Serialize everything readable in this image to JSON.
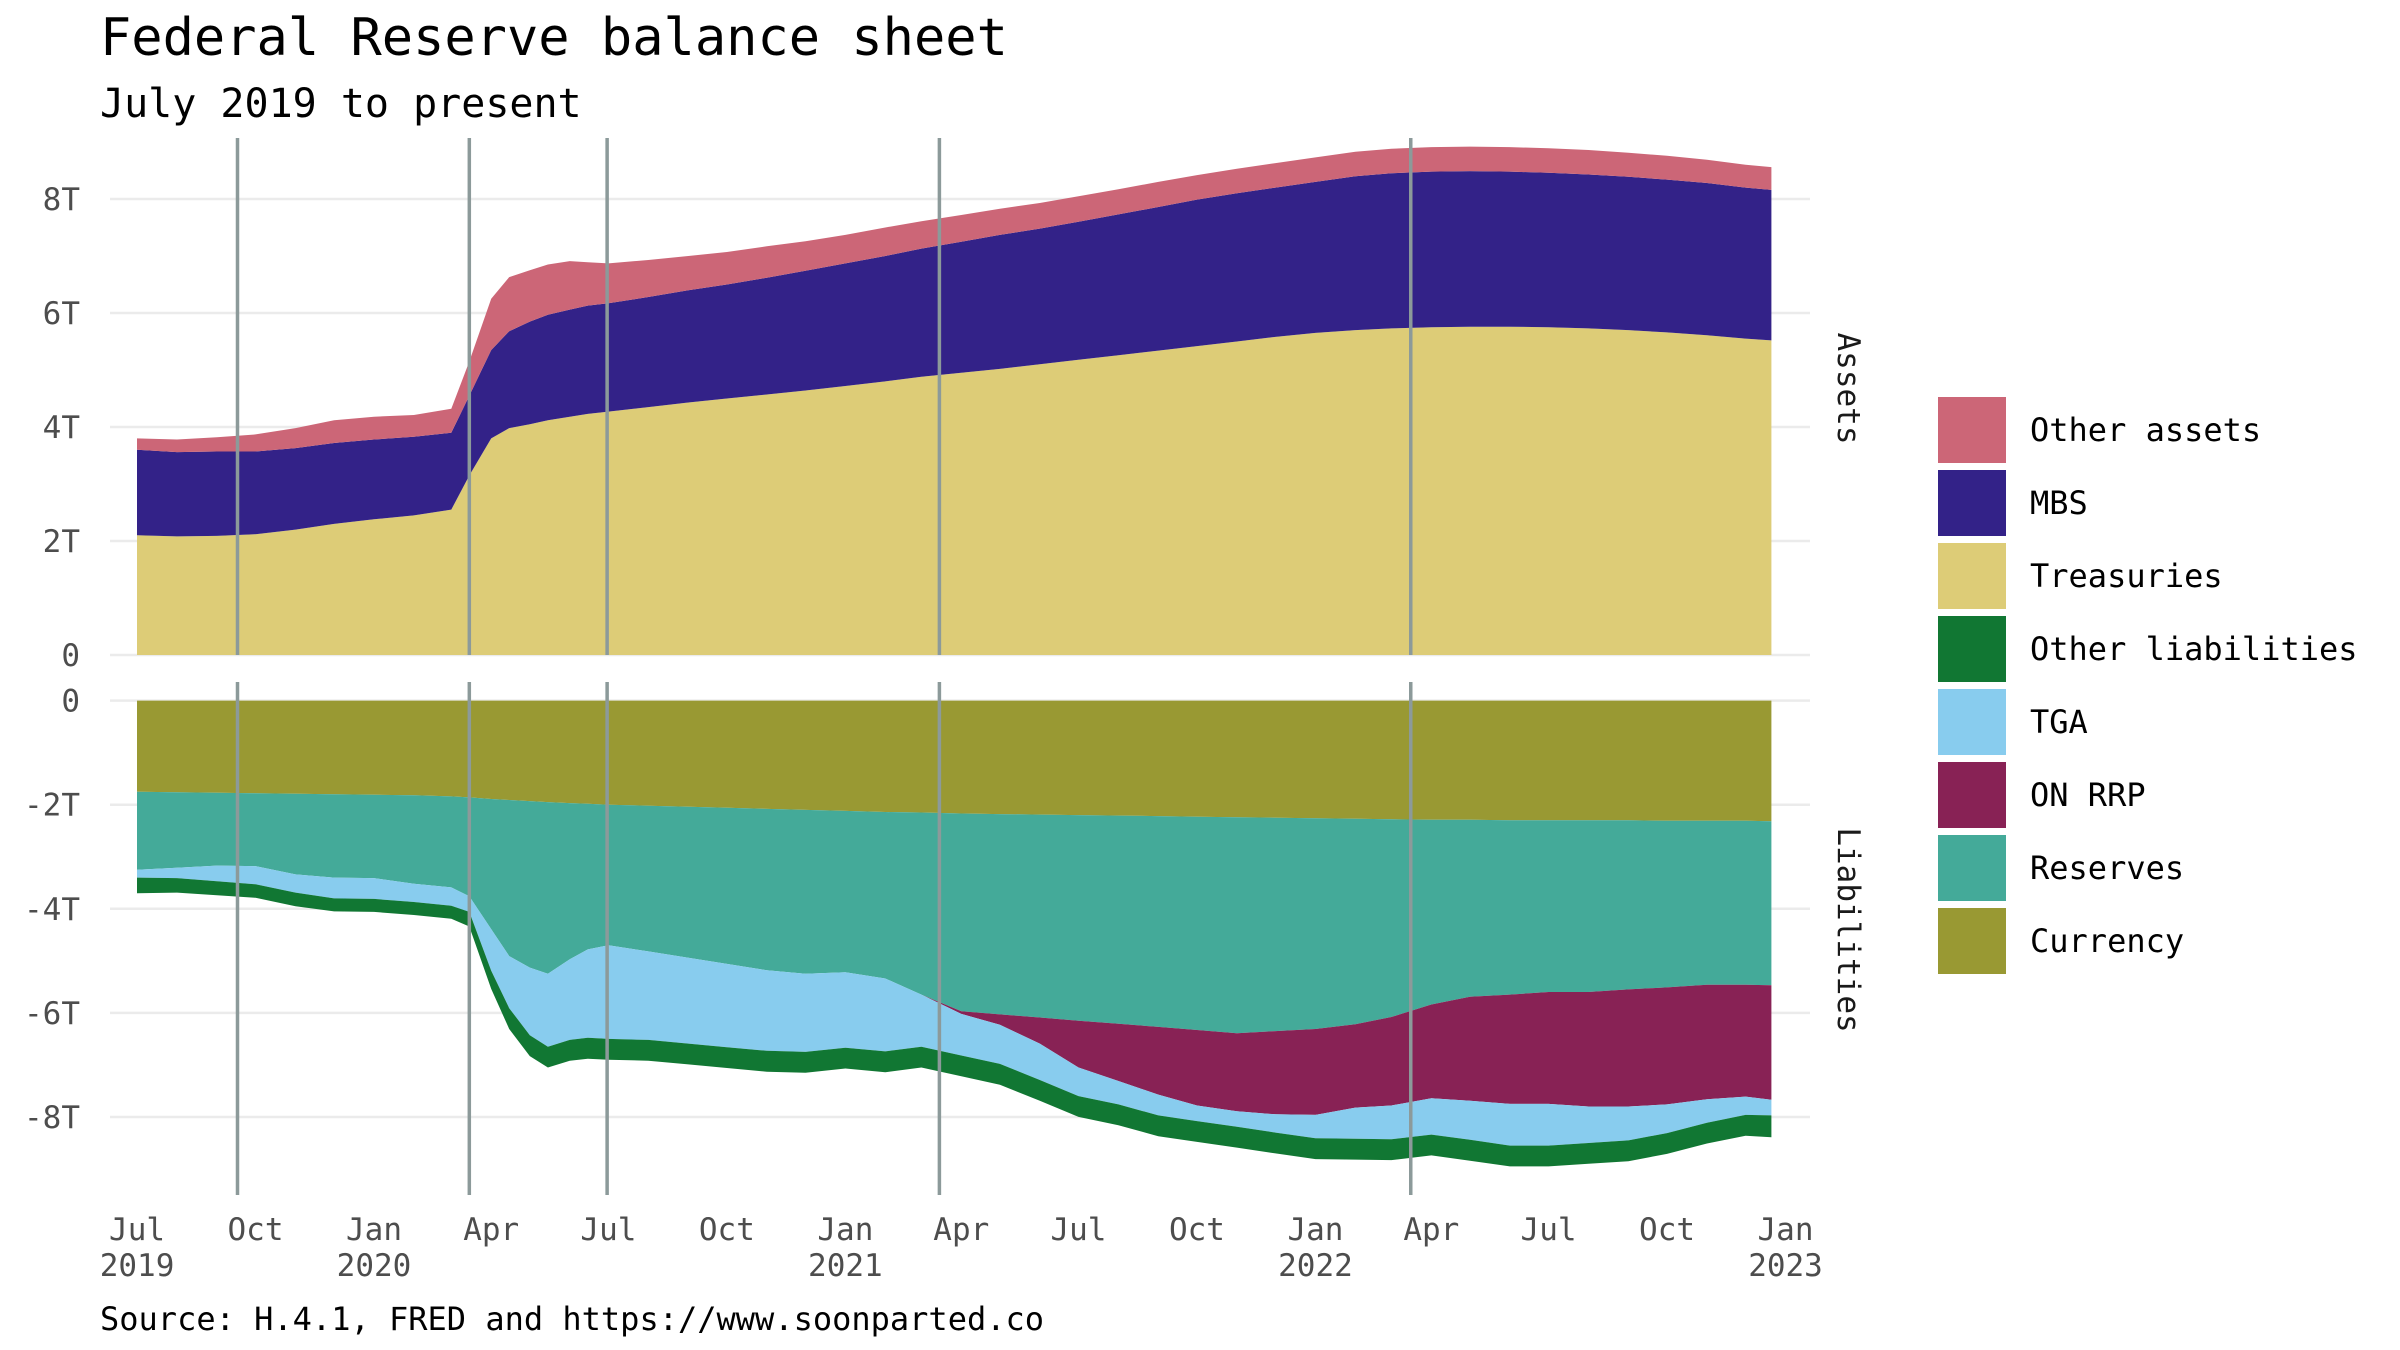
{
  "title": "Federal Reserve balance sheet",
  "subtitle": "July 2019 to present",
  "source": "Source: H.4.1, FRED and https://www.soonparted.co",
  "colors": {
    "Other assets": "#cc6677",
    "MBS": "#332288",
    "Treasuries": "#ddcc77",
    "Other liabilities": "#117733",
    "TGA": "#88ccee",
    "ON RRP": "#882255",
    "Reserves": "#44aa99",
    "Currency": "#999933",
    "event_line": "#8c9a9a",
    "grid": "#ebebeb"
  },
  "chart_data": {
    "type": "area",
    "stacked": true,
    "x": [
      "2019-07-01",
      "2019-08-01",
      "2019-09-01",
      "2019-10-01",
      "2019-11-01",
      "2019-12-01",
      "2020-01-01",
      "2020-02-01",
      "2020-03-01",
      "2020-03-15",
      "2020-04-01",
      "2020-04-15",
      "2020-05-01",
      "2020-05-15",
      "2020-06-01",
      "2020-06-15",
      "2020-07-01",
      "2020-08-01",
      "2020-09-01",
      "2020-10-01",
      "2020-11-01",
      "2020-12-01",
      "2021-01-01",
      "2021-02-01",
      "2021-03-01",
      "2021-04-01",
      "2021-05-01",
      "2021-06-01",
      "2021-07-01",
      "2021-08-01",
      "2021-09-01",
      "2021-10-01",
      "2021-11-01",
      "2021-12-01",
      "2022-01-01",
      "2022-02-01",
      "2022-03-01",
      "2022-04-01",
      "2022-05-01",
      "2022-06-01",
      "2022-07-01",
      "2022-08-01",
      "2022-09-01",
      "2022-10-01",
      "2022-11-01",
      "2022-12-01",
      "2022-12-21"
    ],
    "x_ticks": [
      {
        "date": "2019-07-01",
        "label": "Jul",
        "year": "2019"
      },
      {
        "date": "2019-10-01",
        "label": "Oct",
        "year": ""
      },
      {
        "date": "2020-01-01",
        "label": "Jan",
        "year": "2020"
      },
      {
        "date": "2020-04-01",
        "label": "Apr",
        "year": ""
      },
      {
        "date": "2020-07-01",
        "label": "Jul",
        "year": ""
      },
      {
        "date": "2020-10-01",
        "label": "Oct",
        "year": ""
      },
      {
        "date": "2021-01-01",
        "label": "Jan",
        "year": "2021"
      },
      {
        "date": "2021-04-01",
        "label": "Apr",
        "year": ""
      },
      {
        "date": "2021-07-01",
        "label": "Jul",
        "year": ""
      },
      {
        "date": "2021-10-01",
        "label": "Oct",
        "year": ""
      },
      {
        "date": "2022-01-01",
        "label": "Jan",
        "year": "2022"
      },
      {
        "date": "2022-04-01",
        "label": "Apr",
        "year": ""
      },
      {
        "date": "2022-07-01",
        "label": "Jul",
        "year": ""
      },
      {
        "date": "2022-10-01",
        "label": "Oct",
        "year": ""
      },
      {
        "date": "2023-01-01",
        "label": "Jan",
        "year": "2023"
      }
    ],
    "xlim": [
      "2019-06-10",
      "2023-01-20"
    ],
    "event_lines": [
      "2019-09-17",
      "2020-03-15",
      "2020-06-30",
      "2021-03-15",
      "2022-03-16"
    ],
    "panels": [
      {
        "strip": "Assets",
        "ylim": [
          0,
          9
        ],
        "y_ticks": [
          {
            "value": 0,
            "label": "0"
          },
          {
            "value": 2,
            "label": "2T"
          },
          {
            "value": 4,
            "label": "4T"
          },
          {
            "value": 6,
            "label": "6T"
          },
          {
            "value": 8,
            "label": "8T"
          }
        ],
        "series": [
          {
            "name": "Treasuries",
            "values": [
              2.1,
              2.08,
              2.09,
              2.12,
              2.2,
              2.3,
              2.38,
              2.45,
              2.55,
              3.15,
              3.8,
              3.98,
              4.05,
              4.12,
              4.18,
              4.23,
              4.27,
              4.35,
              4.43,
              4.5,
              4.57,
              4.64,
              4.72,
              4.8,
              4.88,
              4.95,
              5.02,
              5.1,
              5.18,
              5.26,
              5.34,
              5.42,
              5.5,
              5.58,
              5.65,
              5.7,
              5.73,
              5.75,
              5.76,
              5.76,
              5.75,
              5.73,
              5.7,
              5.66,
              5.61,
              5.55,
              5.52
            ]
          },
          {
            "name": "MBS",
            "values": [
              1.5,
              1.48,
              1.48,
              1.45,
              1.43,
              1.42,
              1.4,
              1.38,
              1.35,
              1.4,
              1.55,
              1.7,
              1.8,
              1.85,
              1.88,
              1.9,
              1.9,
              1.93,
              1.97,
              2.0,
              2.05,
              2.1,
              2.15,
              2.2,
              2.25,
              2.3,
              2.35,
              2.38,
              2.42,
              2.47,
              2.52,
              2.57,
              2.6,
              2.62,
              2.65,
              2.7,
              2.72,
              2.73,
              2.73,
              2.72,
              2.71,
              2.7,
              2.69,
              2.68,
              2.67,
              2.65,
              2.64
            ]
          },
          {
            "name": "Other assets",
            "values": [
              0.2,
              0.22,
              0.25,
              0.3,
              0.35,
              0.4,
              0.4,
              0.38,
              0.42,
              0.6,
              0.9,
              0.95,
              0.9,
              0.88,
              0.85,
              0.76,
              0.7,
              0.65,
              0.6,
              0.57,
              0.55,
              0.52,
              0.5,
              0.5,
              0.48,
              0.47,
              0.46,
              0.45,
              0.45,
              0.44,
              0.44,
              0.43,
              0.43,
              0.43,
              0.43,
              0.43,
              0.43,
              0.43,
              0.43,
              0.43,
              0.43,
              0.43,
              0.42,
              0.42,
              0.41,
              0.4,
              0.4
            ]
          }
        ]
      },
      {
        "strip": "Liabilities",
        "ylim": [
          -9.5,
          0.3
        ],
        "y_ticks": [
          {
            "value": 0,
            "label": "0"
          },
          {
            "value": -2,
            "label": "-2T"
          },
          {
            "value": -4,
            "label": "-4T"
          },
          {
            "value": -6,
            "label": "-6T"
          },
          {
            "value": -8,
            "label": "-8T"
          }
        ],
        "series": [
          {
            "name": "Currency",
            "values": [
              -1.75,
              -1.76,
              -1.77,
              -1.78,
              -1.79,
              -1.8,
              -1.81,
              -1.82,
              -1.84,
              -1.86,
              -1.89,
              -1.91,
              -1.93,
              -1.95,
              -1.97,
              -1.98,
              -2.0,
              -2.02,
              -2.04,
              -2.06,
              -2.08,
              -2.1,
              -2.12,
              -2.14,
              -2.15,
              -2.17,
              -2.18,
              -2.19,
              -2.2,
              -2.21,
              -2.22,
              -2.23,
              -2.24,
              -2.25,
              -2.26,
              -2.27,
              -2.28,
              -2.29,
              -2.29,
              -2.3,
              -2.3,
              -2.3,
              -2.3,
              -2.31,
              -2.31,
              -2.31,
              -2.32
            ]
          },
          {
            "name": "Reserves",
            "values": [
              -1.5,
              -1.45,
              -1.4,
              -1.4,
              -1.55,
              -1.6,
              -1.6,
              -1.7,
              -1.75,
              -1.9,
              -2.5,
              -3.0,
              -3.2,
              -3.3,
              -3.0,
              -2.8,
              -2.7,
              -2.8,
              -2.9,
              -3.0,
              -3.1,
              -3.15,
              -3.1,
              -3.2,
              -3.5,
              -3.8,
              -3.85,
              -3.9,
              -3.95,
              -4.0,
              -4.05,
              -4.1,
              -4.15,
              -4.1,
              -4.05,
              -3.95,
              -3.8,
              -3.55,
              -3.4,
              -3.35,
              -3.3,
              -3.3,
              -3.25,
              -3.2,
              -3.15,
              -3.15,
              -3.15
            ]
          },
          {
            "name": "ON RRP",
            "values": [
              0,
              0,
              0,
              0,
              0,
              0,
              0,
              0,
              0,
              0,
              0,
              0,
              0,
              0,
              0,
              0,
              0,
              0,
              0,
              0,
              0,
              0,
              0,
              0,
              0,
              -0.05,
              -0.2,
              -0.5,
              -0.9,
              -1.1,
              -1.3,
              -1.45,
              -1.5,
              -1.6,
              -1.65,
              -1.6,
              -1.7,
              -1.8,
              -2.0,
              -2.1,
              -2.15,
              -2.2,
              -2.25,
              -2.25,
              -2.2,
              -2.15,
              -2.2
            ]
          },
          {
            "name": "TGA",
            "values": [
              -0.15,
              -0.2,
              -0.3,
              -0.35,
              -0.35,
              -0.4,
              -0.4,
              -0.35,
              -0.35,
              -0.3,
              -0.8,
              -1.0,
              -1.3,
              -1.4,
              -1.55,
              -1.7,
              -1.8,
              -1.7,
              -1.65,
              -1.6,
              -1.55,
              -1.5,
              -1.45,
              -1.4,
              -1.0,
              -0.8,
              -0.75,
              -0.7,
              -0.55,
              -0.45,
              -0.4,
              -0.3,
              -0.3,
              -0.35,
              -0.45,
              -0.6,
              -0.65,
              -0.7,
              -0.75,
              -0.8,
              -0.8,
              -0.7,
              -0.65,
              -0.55,
              -0.45,
              -0.35,
              -0.3
            ]
          },
          {
            "name": "Other liabilities",
            "values": [
              -0.3,
              -0.28,
              -0.27,
              -0.26,
              -0.26,
              -0.25,
              -0.25,
              -0.25,
              -0.25,
              -0.28,
              -0.35,
              -0.4,
              -0.4,
              -0.4,
              -0.4,
              -0.4,
              -0.4,
              -0.4,
              -0.4,
              -0.4,
              -0.4,
              -0.4,
              -0.4,
              -0.4,
              -0.4,
              -0.4,
              -0.4,
              -0.4,
              -0.4,
              -0.4,
              -0.4,
              -0.4,
              -0.4,
              -0.4,
              -0.4,
              -0.4,
              -0.4,
              -0.4,
              -0.4,
              -0.4,
              -0.4,
              -0.4,
              -0.4,
              -0.4,
              -0.4,
              -0.4,
              -0.42
            ]
          }
        ]
      }
    ],
    "legend": {
      "position": "right",
      "entries": [
        "Other assets",
        "MBS",
        "Treasuries",
        "Other liabilities",
        "TGA",
        "ON RRP",
        "Reserves",
        "Currency"
      ]
    }
  }
}
